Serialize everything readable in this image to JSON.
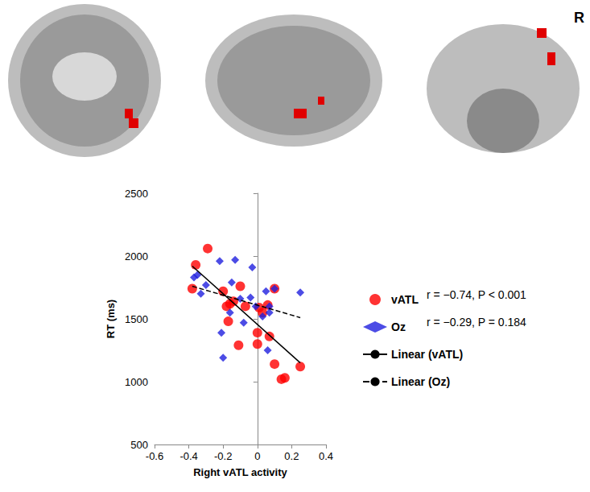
{
  "brain_images": {
    "side_label": "R"
  },
  "chart_data": {
    "type": "scatter",
    "xlabel": "Right vATL activity",
    "ylabel": "RT (ms)",
    "xlim": [
      -0.6,
      0.4
    ],
    "xticks": [
      -0.6,
      -0.4,
      -0.2,
      0,
      0.2,
      0.4
    ],
    "ylim": [
      500,
      2500
    ],
    "yticks": [
      500,
      1000,
      1500,
      2000,
      2500
    ],
    "grid": false,
    "legend": "right",
    "series": [
      {
        "name": "vATL",
        "type": "scatter",
        "color": "#ff0000",
        "marker": "circle",
        "x": [
          -0.38,
          -0.36,
          -0.29,
          -0.2,
          -0.18,
          -0.17,
          -0.16,
          -0.14,
          -0.1,
          -0.11,
          -0.07,
          0,
          0,
          0.01,
          0.06,
          0.07,
          0.1,
          0.1,
          0.14,
          0.16,
          0.25,
          0.03
        ],
        "values": [
          1740,
          1930,
          2060,
          1720,
          1600,
          1480,
          1620,
          1640,
          1760,
          1290,
          1600,
          1300,
          1390,
          1590,
          1610,
          1360,
          1740,
          1140,
          1020,
          1030,
          1120,
          1550
        ],
        "stats": "r = −0.74, P < 0.001"
      },
      {
        "name": "Oz",
        "type": "scatter",
        "color": "#1f1fdf",
        "marker": "diamond",
        "x": [
          -0.37,
          -0.35,
          -0.33,
          -0.3,
          -0.22,
          -0.21,
          -0.2,
          -0.16,
          -0.15,
          -0.13,
          -0.1,
          -0.08,
          -0.04,
          -0.03,
          0.03,
          0.05,
          0.06,
          0.07,
          0.07,
          0.1,
          0.25,
          -0.01
        ],
        "values": [
          1830,
          1850,
          1700,
          1770,
          1960,
          1390,
          1190,
          1550,
          1790,
          1970,
          1660,
          1470,
          1670,
          1910,
          1520,
          1720,
          1250,
          1600,
          1550,
          1740,
          1710,
          1600
        ],
        "stats": "r = −0.29, P = 0.184"
      },
      {
        "name": "Linear (vATL)",
        "type": "line",
        "color": "#000000",
        "line_style": "solid",
        "x": [
          -0.38,
          0.25
        ],
        "values": [
          1920,
          1150
        ]
      },
      {
        "name": "Linear (Oz)",
        "type": "line",
        "color": "#000000",
        "line_style": "dashed",
        "x": [
          -0.38,
          0.25
        ],
        "values": [
          1760,
          1510
        ]
      }
    ]
  }
}
